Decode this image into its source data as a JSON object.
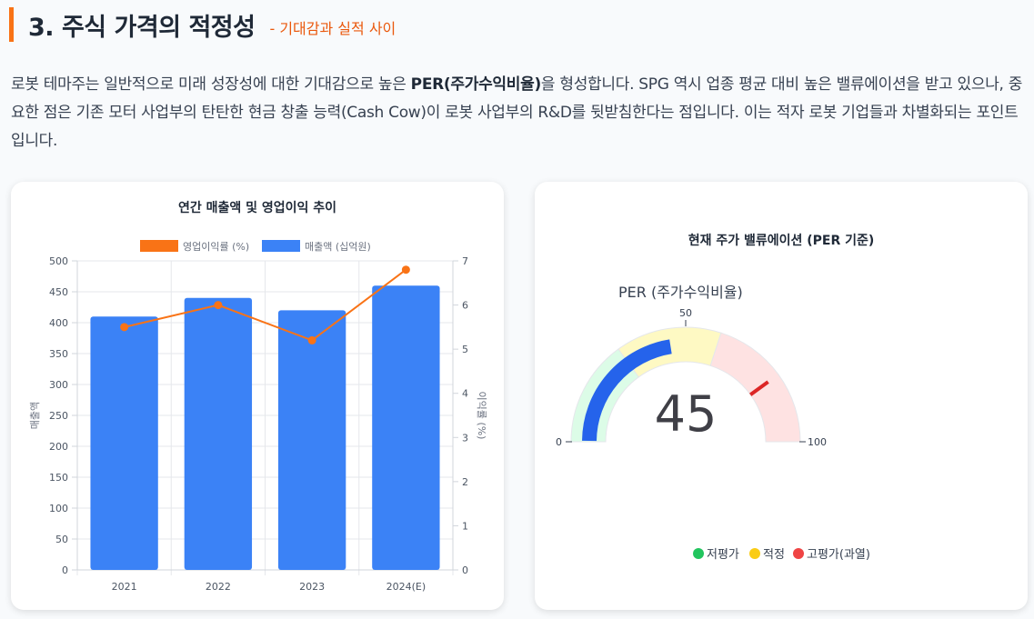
{
  "section": {
    "title": "3. 주식 가격의 적정성",
    "subtitle": "- 기대감과 실적 사이"
  },
  "intro": {
    "part1": "로봇 테마주는 일반적으로 미래 성장성에 대한 기대감으로 높은 ",
    "bold": "PER(주가수익비율)",
    "part2": "을 형성합니다. SPG 역시 업종 평균 대비 높은 밸류에이션을 받고 있으나, 중요한 점은 기존 모터 사업부의 탄탄한 현금 창출 능력(Cash Cow)이 로봇 사업부의 R&D를 뒷받침한다는 점입니다. 이는 적자 로봇 기업들과 차별화되는 포인트입니다."
  },
  "chart_data": [
    {
      "type": "bar",
      "title": "연간 매출액 및 영업이익 추이",
      "categories": [
        "2021",
        "2022",
        "2023",
        "2024(E)"
      ],
      "series": [
        {
          "name": "매출액 (십억원)",
          "type": "bar",
          "axis": "left",
          "color": "#3b82f6",
          "values": [
            410,
            440,
            420,
            460
          ]
        },
        {
          "name": "영업이익률 (%)",
          "type": "line",
          "axis": "right",
          "color": "#f97316",
          "values": [
            5.5,
            6.0,
            5.2,
            6.8
          ]
        }
      ],
      "ylabel": "매출액",
      "y2label": "이익률 (%)",
      "ylim": [
        0,
        500
      ],
      "y2lim": [
        0,
        7
      ],
      "yticks": [
        "0",
        "50",
        "100",
        "150",
        "200",
        "250",
        "300",
        "350",
        "400",
        "450",
        "500"
      ],
      "y2ticks": [
        "0",
        "1",
        "2",
        "3",
        "4",
        "5",
        "6",
        "7"
      ],
      "grid": true,
      "legend": "top"
    }
  ],
  "gauge": {
    "title": "현재 주가 밸류에이션 (PER 기준)",
    "label": "PER (주가수익비율)",
    "value": 45,
    "value_text": "45",
    "min": 0,
    "max": 100,
    "min_label": "0",
    "mid_label": "50",
    "max_label": "100",
    "threshold": 80,
    "bands": [
      {
        "from": 0,
        "to": 30,
        "color": "#dcfce7"
      },
      {
        "from": 30,
        "to": 60,
        "color": "#fef9c3"
      },
      {
        "from": 60,
        "to": 100,
        "color": "#fee2e2"
      }
    ],
    "bar_color": "#2563eb",
    "threshold_color": "#dc2626",
    "legend": [
      {
        "label": "저평가",
        "color": "#22c55e"
      },
      {
        "label": "적정",
        "color": "#facc15"
      },
      {
        "label": "고평가(과열)",
        "color": "#ef4444"
      }
    ]
  }
}
